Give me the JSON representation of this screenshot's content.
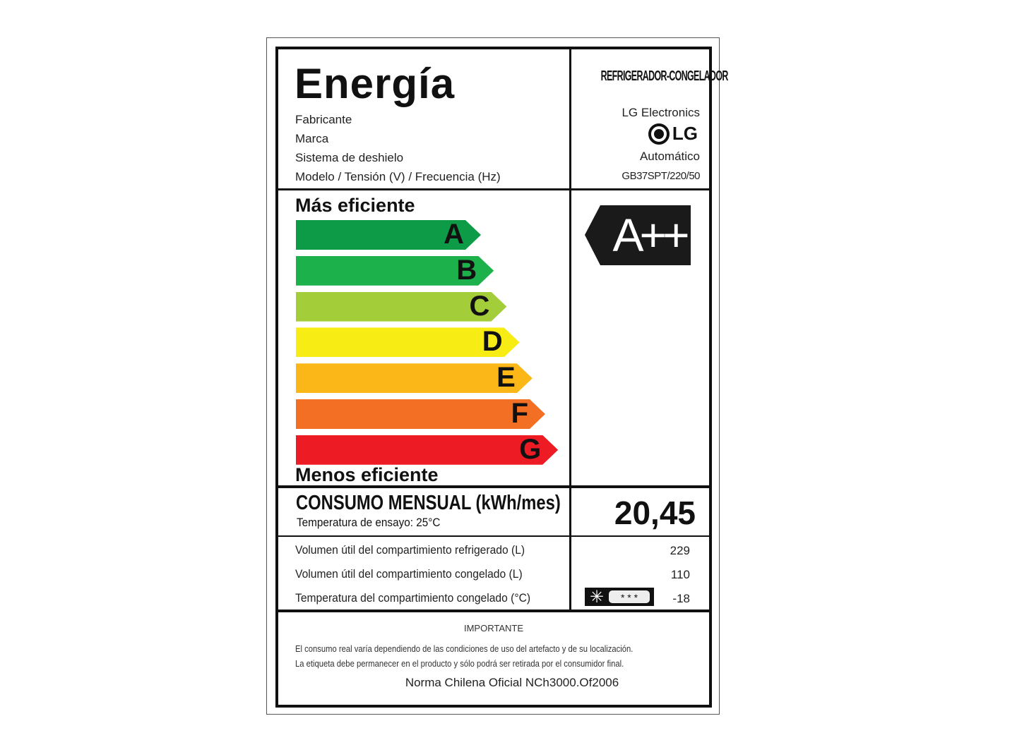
{
  "header": {
    "title": "Energía",
    "appliance_type": "REFRIGERADOR-CONGELADOR",
    "fields": [
      {
        "label": "Fabricante",
        "value": "LG Electronics"
      },
      {
        "label": "Marca",
        "value": "LG"
      },
      {
        "label": "Sistema de deshielo",
        "value": "Automático"
      },
      {
        "label": "Modelo / Tensión (V) / Frecuencia (Hz)",
        "value": "GB37SPT/220/50"
      }
    ]
  },
  "scale": {
    "top_label": "Más eficiente",
    "bottom_label": "Menos eficiente",
    "classes": [
      {
        "letter": "A",
        "color": "#0e9b48"
      },
      {
        "letter": "B",
        "color": "#1db14b"
      },
      {
        "letter": "C",
        "color": "#a3cd39"
      },
      {
        "letter": "D",
        "color": "#f7ec13"
      },
      {
        "letter": "E",
        "color": "#fbb617"
      },
      {
        "letter": "F",
        "color": "#f36f23"
      },
      {
        "letter": "G",
        "color": "#ed1c24"
      }
    ],
    "rating": "A++"
  },
  "consumption": {
    "label": "CONSUMO MENSUAL (kWh/mes)",
    "sublabel": "Temperatura de ensayo: 25°C",
    "value": "20,45"
  },
  "specs": [
    {
      "label": "Volumen útil del compartimiento refrigerado (L)",
      "value": "229"
    },
    {
      "label": "Volumen útil del compartimiento congelado (L)",
      "value": "110"
    },
    {
      "label": "Temperatura del compartimiento congelado (°C)",
      "value": "-18",
      "icon": "freezer-stars-icon",
      "stars": "* * *"
    }
  ],
  "notice": {
    "title": "IMPORTANTE",
    "line1": "El consumo real varía dependiendo de las condiciones de uso del artefacto y de su localización.",
    "line2": "La etiqueta debe permanecer en el producto y sólo podrá ser retirada por el consumidor final.",
    "norm": "Norma Chilena Oficial NCh3000.Of2006"
  }
}
